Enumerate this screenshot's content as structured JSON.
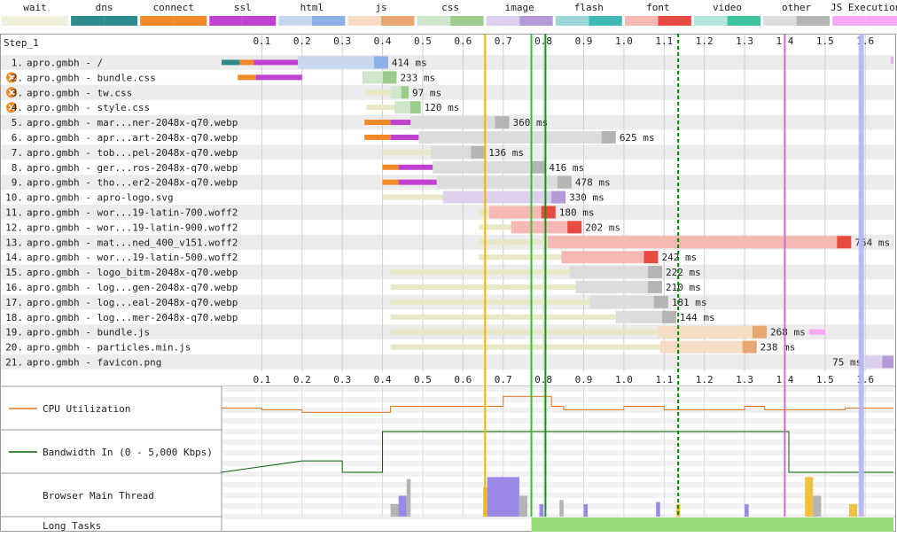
{
  "chart_data": {
    "type": "waterfall",
    "step_label": "Step_1",
    "time_axis": {
      "unit": "s",
      "ticks": [
        "0.1",
        "0.2",
        "0.3",
        "0.4",
        "0.5",
        "0.6",
        "0.7",
        "0.8",
        "0.9",
        "1.0",
        "1.1",
        "1.2",
        "1.3",
        "1.4",
        "1.5",
        "1.6"
      ],
      "range": [
        0,
        1.67
      ]
    },
    "legend": [
      {
        "label": "wait",
        "color": "#f0f0da",
        "alt": "#f0f0da"
      },
      {
        "label": "dns",
        "color": "#2e8b8b",
        "alt": "#2e8b8b"
      },
      {
        "label": "connect",
        "color": "#f08a28",
        "alt": "#f08a28"
      },
      {
        "label": "ssl",
        "color": "#c040d0",
        "alt": "#c040d0"
      },
      {
        "label": "html",
        "color": "#c8d6ee",
        "alt": "#8cb0e8"
      },
      {
        "label": "js",
        "color": "#f6dcc4",
        "alt": "#e8a670"
      },
      {
        "label": "css",
        "color": "#d0e6cc",
        "alt": "#9ccc8c"
      },
      {
        "label": "image",
        "color": "#dcd0ec",
        "alt": "#b49ad8"
      },
      {
        "label": "flash",
        "color": "#9cd6d6",
        "alt": "#40b8b8"
      },
      {
        "label": "font",
        "color": "#f6b8b4",
        "alt": "#e84c40"
      },
      {
        "label": "video",
        "color": "#b4e6dc",
        "alt": "#40c4a0"
      },
      {
        "label": "other",
        "color": "#dcdcdc",
        "alt": "#b4b4b4"
      },
      {
        "label": "JS Execution",
        "color": "#f8a8f4",
        "alt": "#f8a8f4"
      }
    ],
    "requests": [
      {
        "n": "1.",
        "label": "apro.gmbh - /",
        "type": "html",
        "wait": [
          0,
          0
        ],
        "dns": [
          0.0,
          0.045
        ],
        "connect": [
          0.045,
          0.08
        ],
        "ssl": [
          0.08,
          0.19
        ],
        "dl": [
          0.19,
          0.414
        ],
        "ms": "414 ms",
        "icon": false
      },
      {
        "n": "2.",
        "label": "apro.gmbh - bundle.css",
        "type": "css",
        "wait": [
          0,
          0
        ],
        "dns": [
          0,
          0
        ],
        "connect": [
          0.04,
          0.085
        ],
        "ssl": [
          0.085,
          0.2
        ],
        "dl": [
          0.35,
          0.435
        ],
        "ms": "233 ms",
        "icon": true
      },
      {
        "n": "3.",
        "label": "apro.gmbh - tw.css",
        "type": "css",
        "wait": [
          0.36,
          0.42
        ],
        "dns": [
          0,
          0
        ],
        "connect": [
          0,
          0
        ],
        "ssl": [
          0,
          0
        ],
        "dl": [
          0.42,
          0.465
        ],
        "ms": "97 ms",
        "icon": true
      },
      {
        "n": "4.",
        "label": "apro.gmbh - style.css",
        "type": "css",
        "wait": [
          0.36,
          0.43
        ],
        "dns": [
          0,
          0
        ],
        "connect": [
          0,
          0
        ],
        "ssl": [
          0,
          0
        ],
        "dl": [
          0.43,
          0.495
        ],
        "ms": "120 ms",
        "icon": true
      },
      {
        "n": "5.",
        "label": "apro.gmbh - mar...ner-2048x-q70.webp",
        "type": "other",
        "wait": [
          0,
          0
        ],
        "dns": [
          0,
          0
        ],
        "connect": [
          0.355,
          0.42
        ],
        "ssl": [
          0.42,
          0.47
        ],
        "dl": [
          0.47,
          0.715
        ],
        "ms": "360 ms",
        "icon": false
      },
      {
        "n": "6.",
        "label": "apro.gmbh - apr...art-2048x-q70.webp",
        "type": "other",
        "wait": [
          0,
          0
        ],
        "dns": [
          0,
          0
        ],
        "connect": [
          0.355,
          0.42
        ],
        "ssl": [
          0.42,
          0.49
        ],
        "dl": [
          0.49,
          0.98
        ],
        "ms": "625 ms",
        "icon": false
      },
      {
        "n": "7.",
        "label": "apro.gmbh - tob...pel-2048x-q70.webp",
        "type": "other",
        "wait": [
          0.4,
          0.52
        ],
        "dns": [
          0,
          0
        ],
        "connect": [
          0,
          0
        ],
        "ssl": [
          0,
          0
        ],
        "dl": [
          0.52,
          0.655
        ],
        "ms": "136 ms",
        "icon": false
      },
      {
        "n": "8.",
        "label": "apro.gmbh - ger...ros-2048x-q70.webp",
        "type": "other",
        "wait": [
          0,
          0
        ],
        "dns": [
          0,
          0
        ],
        "connect": [
          0.4,
          0.44
        ],
        "ssl": [
          0.44,
          0.525
        ],
        "dl": [
          0.525,
          0.805
        ],
        "ms": "416 ms",
        "icon": false
      },
      {
        "n": "9.",
        "label": "apro.gmbh - tho...er2-2048x-q70.webp",
        "type": "other",
        "wait": [
          0,
          0
        ],
        "dns": [
          0,
          0
        ],
        "connect": [
          0.4,
          0.44
        ],
        "ssl": [
          0.44,
          0.535
        ],
        "dl": [
          0.535,
          0.87
        ],
        "ms": "478 ms",
        "icon": false
      },
      {
        "n": "10.",
        "label": "apro.gmbh - apro-logo.svg",
        "type": "image",
        "wait": [
          0.4,
          0.55
        ],
        "dns": [
          0,
          0
        ],
        "connect": [
          0,
          0
        ],
        "ssl": [
          0,
          0
        ],
        "dl": [
          0.55,
          0.855
        ],
        "ms": "330 ms",
        "icon": false
      },
      {
        "n": "11.",
        "label": "apro.gmbh - wor...19-latin-700.woff2",
        "type": "font",
        "wait": [
          0.64,
          0.665
        ],
        "dns": [
          0,
          0
        ],
        "connect": [
          0,
          0
        ],
        "ssl": [
          0,
          0
        ],
        "dl": [
          0.665,
          0.83
        ],
        "ms": "180 ms",
        "icon": false
      },
      {
        "n": "12.",
        "label": "apro.gmbh - wor...19-latin-900.woff2",
        "type": "font",
        "wait": [
          0.64,
          0.72
        ],
        "dns": [
          0,
          0
        ],
        "connect": [
          0,
          0
        ],
        "ssl": [
          0,
          0
        ],
        "dl": [
          0.72,
          0.895
        ],
        "ms": "202 ms",
        "icon": false
      },
      {
        "n": "13.",
        "label": "apro.gmbh - mat...ned_400_v151.woff2",
        "type": "font",
        "wait": [
          0.64,
          0.81
        ],
        "dns": [
          0,
          0
        ],
        "connect": [
          0,
          0
        ],
        "ssl": [
          0,
          0
        ],
        "dl": [
          0.81,
          1.565
        ],
        "ms": "754 ms",
        "icon": false
      },
      {
        "n": "14.",
        "label": "apro.gmbh - wor...19-latin-500.woff2",
        "type": "font",
        "wait": [
          0.64,
          0.845
        ],
        "dns": [
          0,
          0
        ],
        "connect": [
          0,
          0
        ],
        "ssl": [
          0,
          0
        ],
        "dl": [
          0.845,
          1.085
        ],
        "ms": "242 ms",
        "icon": false
      },
      {
        "n": "15.",
        "label": "apro.gmbh - logo_bitm-2048x-q70.webp",
        "type": "other",
        "wait": [
          0.42,
          0.865
        ],
        "dns": [
          0,
          0
        ],
        "connect": [
          0,
          0
        ],
        "ssl": [
          0,
          0
        ],
        "dl": [
          0.865,
          1.095
        ],
        "ms": "222 ms",
        "icon": false
      },
      {
        "n": "16.",
        "label": "apro.gmbh - log...gen-2048x-q70.webp",
        "type": "other",
        "wait": [
          0.42,
          0.88
        ],
        "dns": [
          0,
          0
        ],
        "connect": [
          0,
          0
        ],
        "ssl": [
          0,
          0
        ],
        "dl": [
          0.88,
          1.095
        ],
        "ms": "210 ms",
        "icon": false
      },
      {
        "n": "17.",
        "label": "apro.gmbh - log...eal-2048x-q70.webp",
        "type": "other",
        "wait": [
          0.42,
          0.915
        ],
        "dns": [
          0,
          0
        ],
        "connect": [
          0,
          0
        ],
        "ssl": [
          0,
          0
        ],
        "dl": [
          0.915,
          1.11
        ],
        "ms": "181 ms",
        "icon": false
      },
      {
        "n": "18.",
        "label": "apro.gmbh - log...mer-2048x-q70.webp",
        "type": "other",
        "wait": [
          0.42,
          0.98
        ],
        "dns": [
          0,
          0
        ],
        "connect": [
          0,
          0
        ],
        "ssl": [
          0,
          0
        ],
        "dl": [
          0.98,
          1.13
        ],
        "ms": "144 ms",
        "icon": false
      },
      {
        "n": "19.",
        "label": "apro.gmbh - bundle.js",
        "type": "js",
        "wait": [
          0.42,
          1.085
        ],
        "dns": [
          0,
          0
        ],
        "connect": [
          0,
          0
        ],
        "ssl": [
          0,
          0
        ],
        "dl": [
          1.085,
          1.355
        ],
        "ms": "268 ms",
        "icon": false,
        "jsexec": [
          1.46,
          1.5
        ]
      },
      {
        "n": "20.",
        "label": "apro.gmbh - particles.min.js",
        "type": "js",
        "wait": [
          0.42,
          1.09
        ],
        "dns": [
          0,
          0
        ],
        "connect": [
          0,
          0
        ],
        "ssl": [
          0,
          0
        ],
        "dl": [
          1.09,
          1.33
        ],
        "ms": "238 ms",
        "icon": false
      },
      {
        "n": "21.",
        "label": "apro.gmbh - favicon.png",
        "type": "image",
        "wait": [
          1.58,
          1.6
        ],
        "dns": [
          0,
          0
        ],
        "connect": [
          0,
          0
        ],
        "ssl": [
          0,
          0
        ],
        "dl": [
          1.6,
          1.67
        ],
        "ms": "75 ms",
        "icon": false,
        "ms_left": true
      }
    ],
    "markers": [
      {
        "t": 0.655,
        "color": "#f0b400",
        "style": "solid"
      },
      {
        "t": 0.77,
        "color": "#28c828",
        "style": "solid"
      },
      {
        "t": 0.805,
        "color": "#00a000",
        "style": "solid"
      },
      {
        "t": 1.135,
        "color": "#008000",
        "style": "dashed"
      },
      {
        "t": 1.4,
        "color": "#c86ec8",
        "style": "solid"
      },
      {
        "t": 1.59,
        "color": "#b4b4f4",
        "style": "band"
      }
    ],
    "panels": {
      "cpu_label": "CPU Utilization",
      "bandwidth_label": "Bandwidth In (0 - 5,000 Kbps)",
      "main_thread_label": "Browser Main Thread",
      "long_tasks_label": "Long Tasks",
      "cpu_steps": [
        [
          0,
          0.5
        ],
        [
          0.1,
          0.45
        ],
        [
          0.2,
          0.38
        ],
        [
          0.4,
          0.38
        ],
        [
          0.42,
          0.55
        ],
        [
          0.6,
          0.55
        ],
        [
          0.7,
          0.82
        ],
        [
          0.82,
          0.55
        ],
        [
          0.85,
          0.45
        ],
        [
          0.95,
          0.45
        ],
        [
          1.0,
          0.55
        ],
        [
          1.1,
          0.45
        ],
        [
          1.2,
          0.45
        ],
        [
          1.3,
          0.55
        ],
        [
          1.35,
          0.45
        ],
        [
          1.5,
          0.45
        ],
        [
          1.55,
          0.5
        ],
        [
          1.67,
          0.5
        ]
      ],
      "bandwidth_steps": [
        [
          0,
          0
        ],
        [
          0.2,
          0.28
        ],
        [
          0.3,
          0.28
        ],
        [
          0.3,
          0
        ],
        [
          0.4,
          0
        ],
        [
          0.4,
          1
        ],
        [
          1.41,
          1
        ],
        [
          1.41,
          0
        ],
        [
          1.67,
          0
        ]
      ],
      "long_task_range": [
        0.77,
        1.67
      ]
    }
  }
}
